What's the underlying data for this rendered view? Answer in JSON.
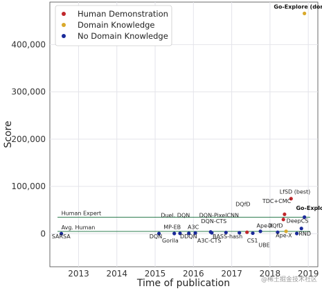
{
  "chart_data": {
    "type": "scatter",
    "xlabel": "Time of publication",
    "ylabel": "Score",
    "xlim": [
      2012.25,
      2019.25
    ],
    "ylim": [
      -70000,
      490000
    ],
    "grid": true,
    "legend_position": "top-left",
    "x_ticks": [
      {
        "value": 2013,
        "label": "2013"
      },
      {
        "value": 2014,
        "label": "2014"
      },
      {
        "value": 2015,
        "label": "2015"
      },
      {
        "value": 2016,
        "label": "2016"
      },
      {
        "value": 2017,
        "label": "2017"
      },
      {
        "value": 2018,
        "label": "2018"
      },
      {
        "value": 2019,
        "label": "2019"
      }
    ],
    "y_ticks": [
      {
        "value": 0,
        "label": "0"
      },
      {
        "value": 100000,
        "label": "100,000"
      },
      {
        "value": 200000,
        "label": "200,000"
      },
      {
        "value": 300000,
        "label": "300,000"
      },
      {
        "value": 400000,
        "label": "400,000"
      }
    ],
    "series": [
      {
        "name": "Human Demonstration",
        "color": "#c0262b",
        "points": [
          {
            "x": 2017.4,
            "y": 3000
          },
          {
            "x": 2018.35,
            "y": 30000
          },
          {
            "x": 2018.38,
            "y": 41000
          },
          {
            "x": 2018.55,
            "y": 74000
          }
        ]
      },
      {
        "name": "Domain Knowledge",
        "color": "#d9a92b",
        "points": [
          {
            "x": 2018.42,
            "y": 5000
          },
          {
            "x": 2018.9,
            "y": 466000
          }
        ]
      },
      {
        "name": "No Domain Knowledge",
        "color": "#1a2a9a",
        "points": [
          {
            "x": 2012.55,
            "y": 0
          },
          {
            "x": 2015.1,
            "y": 200
          },
          {
            "x": 2015.5,
            "y": 400
          },
          {
            "x": 2015.65,
            "y": 600
          },
          {
            "x": 2015.88,
            "y": 800
          },
          {
            "x": 2016.05,
            "y": 1500
          },
          {
            "x": 2016.45,
            "y": 3700
          },
          {
            "x": 2016.48,
            "y": 1800
          },
          {
            "x": 2016.85,
            "y": 2500
          },
          {
            "x": 2017.2,
            "y": 2000
          },
          {
            "x": 2017.55,
            "y": 1000
          },
          {
            "x": 2017.75,
            "y": 5000
          },
          {
            "x": 2018.2,
            "y": 3000
          },
          {
            "x": 2018.7,
            "y": 400
          },
          {
            "x": 2018.82,
            "y": 11000
          },
          {
            "x": 2018.9,
            "y": 35000
          }
        ]
      }
    ],
    "reference_lines": [
      {
        "label": "Human Expert",
        "y": 34900,
        "color": "#2e7d4f"
      },
      {
        "label": "Avg. Human",
        "y": 4750,
        "color": "#2e7d4f"
      }
    ],
    "annotations": [
      {
        "text": "Go-Explore (domain knowledge)",
        "x": 2018.1,
        "y": 476000,
        "bold": true
      },
      {
        "text": "LfSD (best)",
        "x": 2018.25,
        "y": 85000
      },
      {
        "text": "TDC+CMC",
        "x": 2017.8,
        "y": 65000
      },
      {
        "text": "DQfD",
        "x": 2017.1,
        "y": 58000
      },
      {
        "text": "Go-Explore",
        "x": 2018.68,
        "y": 50000,
        "bold": true
      },
      {
        "text": "DeepCS",
        "x": 2018.43,
        "y": 23000
      },
      {
        "text": "DQfD",
        "x": 2017.95,
        "y": 13000
      },
      {
        "text": "Ape-X",
        "x": 2017.65,
        "y": 13000
      },
      {
        "text": "Ape-X",
        "x": 2018.15,
        "y": -8000
      },
      {
        "text": "RND",
        "x": 2018.75,
        "y": -4000
      },
      {
        "text": "Human Expert",
        "x": 2012.55,
        "y": 39000
      },
      {
        "text": "Avg. Human",
        "x": 2012.55,
        "y": 9000
      },
      {
        "text": "SARSA",
        "x": 2012.3,
        "y": -10000
      },
      {
        "text": "Duel. DQN",
        "x": 2015.15,
        "y": 34500
      },
      {
        "text": "DQN-PixelCNN",
        "x": 2016.15,
        "y": 35000
      },
      {
        "text": "DQN-CTS",
        "x": 2016.2,
        "y": 22000
      },
      {
        "text": "MP-EB",
        "x": 2015.22,
        "y": 10000
      },
      {
        "text": "A3C",
        "x": 2015.85,
        "y": 10000
      },
      {
        "text": "DQN",
        "x": 2014.85,
        "y": -10000
      },
      {
        "text": "Gorila",
        "x": 2015.18,
        "y": -19000
      },
      {
        "text": "DDQN",
        "x": 2015.65,
        "y": -10000
      },
      {
        "text": "A3C-CTS",
        "x": 2016.1,
        "y": -19000
      },
      {
        "text": "BASS-hash",
        "x": 2016.5,
        "y": -10000
      },
      {
        "text": "CS1",
        "x": 2017.4,
        "y": -19000
      },
      {
        "text": "UBE",
        "x": 2017.7,
        "y": -28000
      }
    ]
  },
  "watermark": {
    "text": "@稀土掘金技术社区"
  }
}
